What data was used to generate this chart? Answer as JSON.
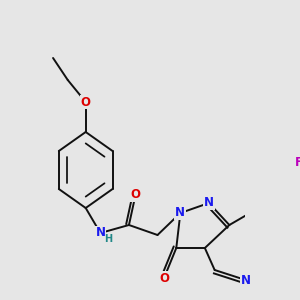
{
  "bg_color": "#e6e6e6",
  "bond_color": "#111111",
  "bond_width": 1.4,
  "dbo": 0.012,
  "atom_colors": {
    "N": "#1a1aee",
    "O": "#dd0000",
    "F": "#bb00bb",
    "H": "#228888",
    "C": "#111111"
  },
  "fs": 8.5,
  "fs2": 7.0
}
